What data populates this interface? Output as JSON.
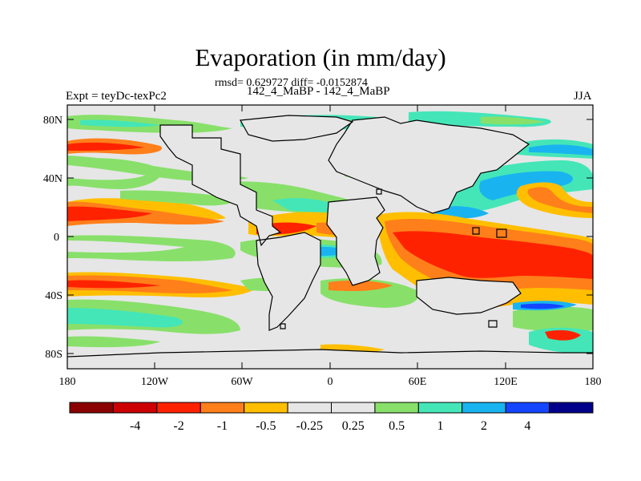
{
  "title": "Evaporation (in mm/day)",
  "stats": "rmsd= 0.629727 diff= -0.0152874",
  "cases": "142_4_MaBP - 142_4_MaBP",
  "expt": "Expt = teyDc-texPc2",
  "season": "JJA",
  "lat_ticks": [
    "80N",
    "40N",
    "0",
    "40S",
    "80S"
  ],
  "lon_ticks": [
    "180",
    "120W",
    "60W",
    "0",
    "60E",
    "120E",
    "180"
  ],
  "colorbar": {
    "colors": [
      "#8b0000",
      "#cc0000",
      "#ff2200",
      "#ff7f1a",
      "#ffbf00",
      "#e6e6e6",
      "#e6e6e6",
      "#88e06a",
      "#44e6b8",
      "#19b4f0",
      "#1446ff",
      "#00008b"
    ],
    "labels": [
      "-4",
      "-2",
      "-1",
      "-0.5",
      "-0.25",
      "0.25",
      "0.5",
      "1",
      "2",
      "4"
    ]
  },
  "map_colors": {
    "background": "#e6e6e6",
    "land_outline": "#000000"
  }
}
